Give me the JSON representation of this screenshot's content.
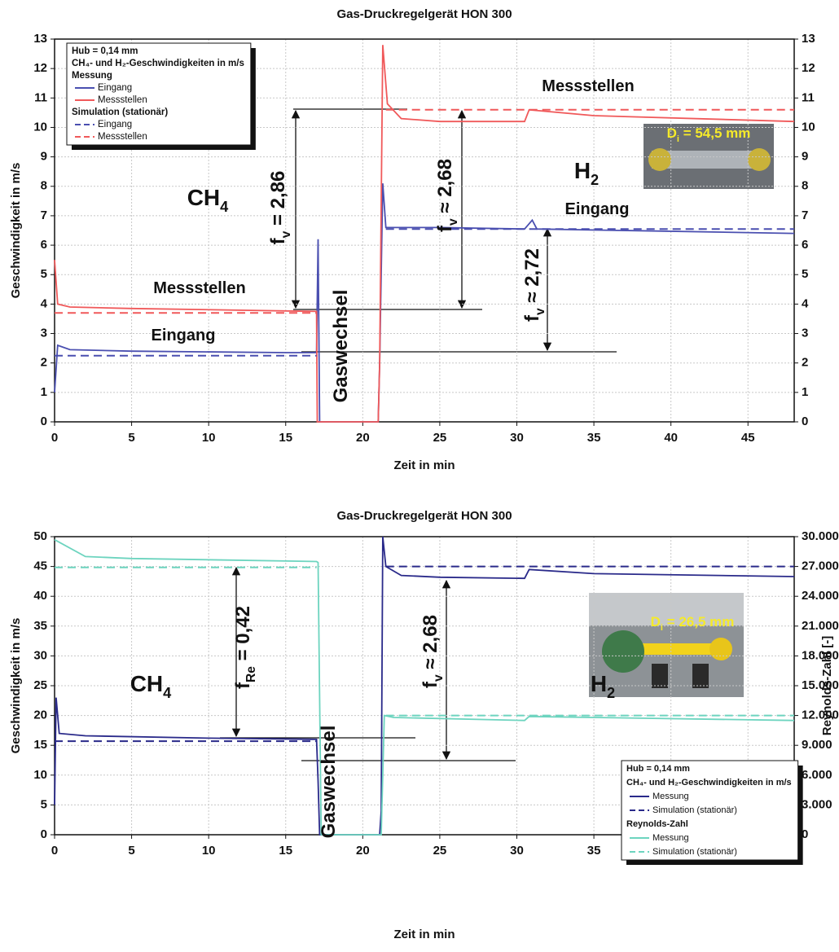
{
  "chart_data": [
    {
      "type": "line",
      "title": "Gas-Druckregelgerät HON 300",
      "x_label": "Zeit in min",
      "y_label": "Geschwindigkeit in m/s",
      "xlim": [
        0,
        48
      ],
      "xticks": [
        0,
        5,
        10,
        15,
        20,
        25,
        30,
        35,
        40,
        45
      ],
      "ylim": [
        0,
        13
      ],
      "yticks": [
        0,
        1,
        2,
        3,
        4,
        5,
        6,
        7,
        8,
        9,
        10,
        11,
        12,
        13
      ],
      "y2lim": [
        0,
        13
      ],
      "y2ticks": [
        0,
        1,
        2,
        3,
        4,
        5,
        6,
        7,
        8,
        9,
        10,
        11,
        12,
        13
      ],
      "grid": true,
      "series": [
        {
          "name": "Eingang",
          "color": "#4a4fb0",
          "dash": false,
          "x": [
            0,
            0.2,
            1,
            5,
            15,
            17,
            17.1,
            17.2,
            21,
            21.1,
            21.3,
            21.5,
            25,
            30.5,
            31,
            31.3,
            48
          ],
          "values": [
            1.0,
            2.6,
            2.45,
            2.4,
            2.35,
            2.35,
            6.2,
            0,
            0,
            2.0,
            8.1,
            6.6,
            6.6,
            6.55,
            6.85,
            6.55,
            6.4
          ]
        },
        {
          "name": "Messstellen",
          "color": "#f0595a",
          "dash": false,
          "x": [
            0,
            0.2,
            1,
            5,
            17,
            17.05,
            21,
            21.1,
            21.3,
            21.6,
            22.5,
            25,
            30.5,
            30.8,
            35,
            48
          ],
          "values": [
            5.5,
            4.0,
            3.9,
            3.85,
            3.75,
            0,
            0,
            2.0,
            12.8,
            10.8,
            10.3,
            10.2,
            10.2,
            10.6,
            10.4,
            10.2
          ]
        },
        {
          "name": "Eingang",
          "color": "#4a4fb0",
          "dash": true,
          "x": [
            0,
            17,
            19,
            21.5,
            48
          ],
          "values": [
            2.25,
            2.25,
            null,
            6.55,
            6.55
          ]
        },
        {
          "name": "Messstellen",
          "color": "#f0595a",
          "dash": true,
          "x": [
            0,
            17,
            19,
            21.5,
            48
          ],
          "values": [
            3.7,
            3.7,
            null,
            10.6,
            10.6
          ]
        }
      ],
      "legend": {
        "lines": [
          "Hub = 0,14 mm",
          "CH₄- und H₂-Geschwindigkeiten in m/s"
        ],
        "groups": [
          {
            "heading": "Messung",
            "series": [
              0,
              1
            ]
          },
          {
            "heading": "Simulation (stationär)",
            "series": [
              2,
              3
            ]
          }
        ]
      },
      "annotations": [
        {
          "text": "CH",
          "sub": "4"
        },
        {
          "text": "H",
          "sub": "2"
        },
        {
          "text": "Messstellen"
        },
        {
          "text": "Eingang"
        },
        {
          "text": "Messstellen"
        },
        {
          "text": "Eingang"
        },
        {
          "text": "Gaswechsel"
        },
        {
          "text": "f",
          "sub": "v",
          "after": " = 2,86"
        },
        {
          "text": "f",
          "sub": "v",
          "after": " ≈ 2,68"
        },
        {
          "text": "f",
          "sub": "v",
          "after": " ≈ 2,72"
        },
        {
          "text": "D",
          "sub": "i",
          "after": " = 54,5 mm"
        }
      ]
    },
    {
      "type": "line",
      "title": "Gas-Druckregelgerät HON 300",
      "x_label": "Zeit in min",
      "y_label": "Geschwindigkeit in m/s",
      "y2_label": "Reynolds-Zahl [-]",
      "xlim": [
        0,
        48
      ],
      "xticks": [
        0,
        5,
        10,
        15,
        20,
        25,
        30,
        35,
        40,
        45
      ],
      "ylim": [
        0,
        50
      ],
      "yticks": [
        0,
        5,
        10,
        15,
        20,
        25,
        30,
        35,
        40,
        45,
        50
      ],
      "y2lim": [
        0,
        30000
      ],
      "y2ticks": [
        0,
        {
          "value": 3000,
          "label": "3.000"
        },
        {
          "value": 6000,
          "label": "6.000"
        },
        {
          "value": 9000,
          "label": "9.000"
        },
        {
          "value": 12000,
          "label": "12.000"
        },
        {
          "value": 15000,
          "label": "15.000"
        },
        {
          "value": 18000,
          "label": "18.000"
        },
        {
          "value": 21000,
          "label": "21.000"
        },
        {
          "value": 24000,
          "label": "24.000"
        },
        {
          "value": 27000,
          "label": "27.000"
        },
        {
          "value": 30000,
          "label": "30.000"
        }
      ],
      "grid": true,
      "series": [
        {
          "name": "Messung",
          "color": "#2a2a8a",
          "dash": false,
          "x": [
            0,
            0.1,
            0.3,
            2,
            10,
            17,
            17.1,
            17.2,
            21.1,
            21.2,
            21.3,
            21.5,
            22.5,
            25,
            30.5,
            30.8,
            35,
            48
          ],
          "values": [
            5,
            23,
            17,
            16.6,
            16.2,
            16.0,
            9,
            0,
            0,
            4,
            50,
            45,
            43.5,
            43.2,
            43.0,
            44.5,
            43.8,
            43.3
          ]
        },
        {
          "name": "Simulation (stationär)",
          "color": "#2a2a8a",
          "dash": true,
          "x": [
            0,
            17,
            19,
            21.5,
            48
          ],
          "values": [
            15.7,
            15.7,
            null,
            45,
            45
          ]
        },
        {
          "name": "Messung",
          "color": "#6dd4bf",
          "dash": false,
          "axis": "y2",
          "x": [
            0,
            2,
            5,
            17,
            17.1,
            17.3,
            21.2,
            21.4,
            22,
            30.5,
            30.8,
            48
          ],
          "values": [
            29700,
            28000,
            27800,
            27500,
            27400,
            0,
            0,
            12000,
            11800,
            11500,
            11900,
            11500
          ]
        },
        {
          "name": "Simulation (stationär)",
          "color": "#6dd4bf",
          "dash": true,
          "axis": "y2",
          "x": [
            0,
            17,
            19,
            21.5,
            48
          ],
          "values": [
            26900,
            26900,
            null,
            12000,
            12000
          ]
        }
      ],
      "legend": {
        "lines": [
          "Hub = 0,14 mm"
        ],
        "groups": [
          {
            "heading": "CH₄- und H₂-Geschwindigkeiten in m/s",
            "series": [
              0,
              1
            ]
          },
          {
            "heading": "Reynolds-Zahl",
            "series": [
              2,
              3
            ]
          }
        ]
      },
      "annotations": [
        {
          "text": "CH",
          "sub": "4"
        },
        {
          "text": "H",
          "sub": "2"
        },
        {
          "text": "Gaswechsel"
        },
        {
          "text": "f",
          "sub": "Re",
          "after": " = 0,42"
        },
        {
          "text": "f",
          "sub": "v",
          "after": " ≈ 2,68"
        },
        {
          "text": "D",
          "sub": "i",
          "after": " = 26,5 mm"
        }
      ]
    }
  ]
}
